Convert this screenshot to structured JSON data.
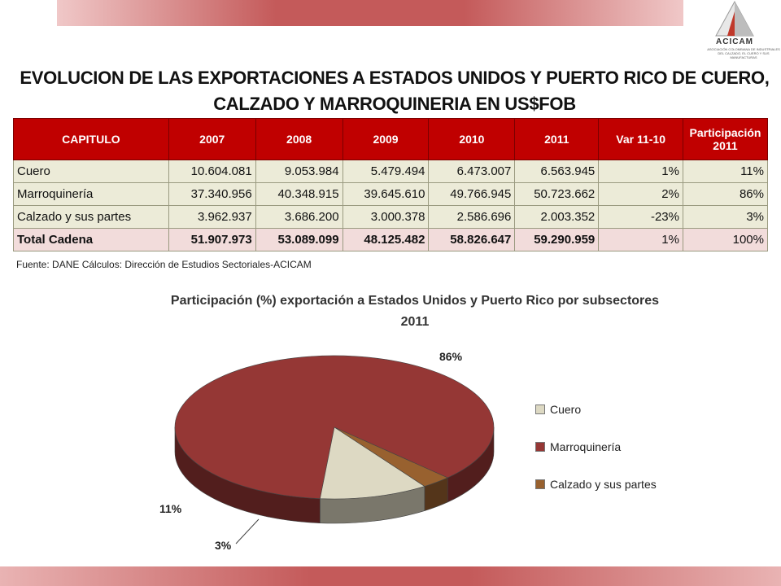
{
  "logo": {
    "name": "ACICAM",
    "tagline": "ASOCIACIÓN COLOMBIANA DE INDUSTRIALES DEL CALZADO, EL CUERO Y SUS MANUFACTURAS"
  },
  "title": "EVOLUCION DE LAS EXPORTACIONES A ESTADOS UNIDOS Y PUERTO RICO DE CUERO, CALZADO Y MARROQUINERIA EN US$FOB",
  "table": {
    "headers": [
      "CAPITULO",
      "2007",
      "2008",
      "2009",
      "2010",
      "2011",
      "Var 11-10",
      "Participación 2011"
    ],
    "rows": [
      [
        "Cuero",
        "10.604.081",
        "9.053.984",
        "5.479.494",
        "6.473.007",
        "6.563.945",
        "1%",
        "11%"
      ],
      [
        "Marroquinería",
        "37.340.956",
        "40.348.915",
        "39.645.610",
        "49.766.945",
        "50.723.662",
        "2%",
        "86%"
      ],
      [
        "Calzado y sus partes",
        "3.962.937",
        "3.686.200",
        "3.000.378",
        "2.586.696",
        "2.003.352",
        "-23%",
        "3%"
      ]
    ],
    "total": [
      "Total Cadena",
      "51.907.973",
      "53.089.099",
      "48.125.482",
      "58.826.647",
      "59.290.959",
      "1%",
      "100%"
    ]
  },
  "source": "Fuente: DANE Cálculos: Dirección de Estudios Sectoriales-ACICAM",
  "chart_data": {
    "type": "pie",
    "title": "Participación (%) exportación a Estados Unidos y Puerto Rico por subsectores 2011",
    "categories": [
      "Cuero",
      "Marroquinería",
      "Calzado y sus partes"
    ],
    "values": [
      11,
      86,
      3
    ],
    "data_labels": [
      "11%",
      "86%",
      "3%"
    ],
    "colors": [
      "#ddd9c3",
      "#953735",
      "#98612f"
    ],
    "legend_position": "right",
    "style": "3d"
  }
}
